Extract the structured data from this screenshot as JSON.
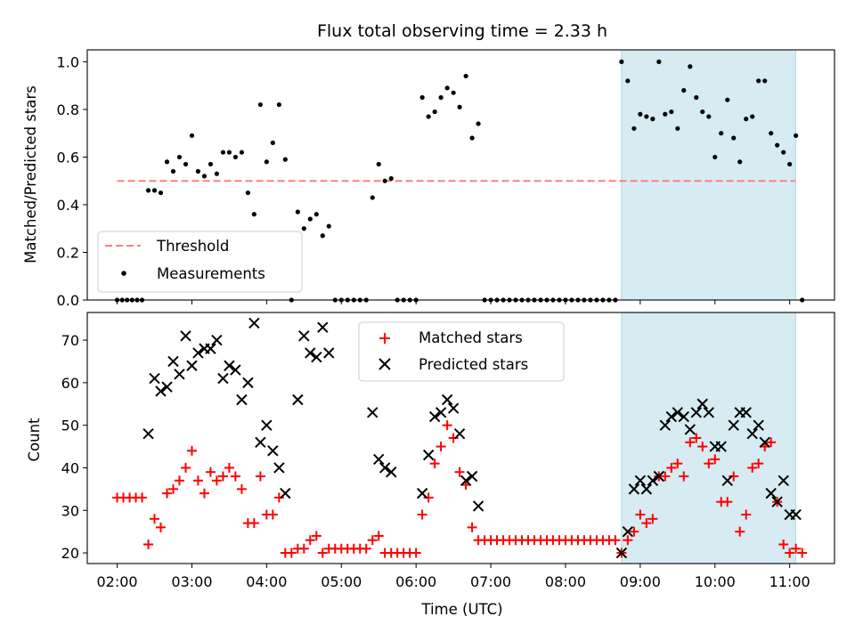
{
  "title": "Flux total observing time = 2.33 h",
  "colors": {
    "threshold": "#ff7f7f",
    "measurement": "#000000",
    "matched": "#ff0000",
    "predicted": "#000000",
    "highlight": "#add8e6"
  },
  "chart_data": [
    {
      "type": "scatter",
      "panel": "top",
      "ylabel": "Matched/Predicted stars",
      "xlabel": "",
      "ylim": [
        0,
        1.05
      ],
      "yticks": [
        0.0,
        0.2,
        0.4,
        0.6,
        0.8,
        1.0
      ],
      "ytick_labels": [
        "0.0",
        "0.2",
        "0.4",
        "0.6",
        "0.8",
        "1.0"
      ],
      "xlim_hours": [
        1.6,
        11.6
      ],
      "highlight_span_hours": [
        8.75,
        11.08
      ],
      "threshold": {
        "name": "Threshold",
        "value": 0.5,
        "x_range_hours": [
          2.0,
          11.08
        ]
      },
      "legend": [
        "Threshold",
        "Measurements"
      ],
      "legend_position": "lower left",
      "series": [
        {
          "name": "Measurements",
          "x_hours": [
            2.0,
            2.067,
            2.133,
            2.2,
            2.267,
            2.333,
            2.417,
            2.5,
            2.583,
            2.667,
            2.75,
            2.833,
            2.917,
            3.0,
            3.083,
            3.167,
            3.25,
            3.333,
            3.417,
            3.5,
            3.583,
            3.667,
            3.75,
            3.833,
            3.917,
            4.0,
            4.083,
            4.167,
            4.25,
            4.333,
            4.417,
            4.5,
            4.583,
            4.667,
            4.75,
            4.833,
            4.917,
            5.0,
            5.083,
            5.167,
            5.25,
            5.333,
            5.417,
            5.5,
            5.583,
            5.667,
            5.75,
            5.833,
            5.917,
            6.0,
            6.083,
            6.167,
            6.25,
            6.333,
            6.417,
            6.5,
            6.583,
            6.667,
            6.75,
            6.833,
            6.917,
            7.0,
            7.083,
            7.167,
            7.25,
            7.333,
            7.417,
            7.5,
            7.583,
            7.667,
            7.75,
            7.833,
            7.917,
            8.0,
            8.083,
            8.167,
            8.25,
            8.333,
            8.417,
            8.5,
            8.583,
            8.667,
            8.75,
            8.833,
            8.917,
            9.0,
            9.083,
            9.167,
            9.25,
            9.333,
            9.417,
            9.5,
            9.583,
            9.667,
            9.75,
            9.833,
            9.917,
            10.0,
            10.083,
            10.167,
            10.25,
            10.333,
            10.417,
            10.5,
            10.583,
            10.667,
            10.75,
            10.833,
            10.917,
            11.0,
            11.083,
            11.167
          ],
          "y": [
            0.0,
            0.0,
            0.0,
            0.0,
            0.0,
            0.0,
            0.46,
            0.46,
            0.45,
            0.58,
            0.54,
            0.6,
            0.57,
            0.69,
            0.54,
            0.52,
            0.57,
            0.53,
            0.62,
            0.62,
            0.6,
            0.62,
            0.45,
            0.36,
            0.82,
            0.58,
            0.66,
            0.82,
            0.59,
            0.0,
            0.37,
            0.3,
            0.34,
            0.36,
            0.27,
            0.31,
            0.0,
            0.0,
            0.0,
            0.0,
            0.0,
            0.0,
            0.43,
            0.57,
            0.5,
            0.51,
            0.0,
            0.0,
            0.0,
            0.0,
            0.85,
            0.77,
            0.79,
            0.85,
            0.89,
            0.87,
            0.81,
            0.94,
            0.68,
            0.74,
            0.0,
            0.0,
            0.0,
            0.0,
            0.0,
            0.0,
            0.0,
            0.0,
            0.0,
            0.0,
            0.0,
            0.0,
            0.0,
            0.0,
            0.0,
            0.0,
            0.0,
            0.0,
            0.0,
            0.0,
            0.0,
            0.0,
            1.0,
            0.92,
            0.72,
            0.78,
            0.77,
            0.76,
            1.0,
            0.78,
            0.79,
            0.72,
            0.88,
            0.98,
            0.85,
            0.79,
            0.77,
            0.6,
            0.7,
            0.84,
            0.68,
            0.58,
            0.76,
            0.77,
            0.92,
            0.92,
            0.7,
            0.65,
            0.62,
            0.57,
            0.69,
            0.0
          ]
        }
      ]
    },
    {
      "type": "scatter",
      "panel": "bottom",
      "ylabel": "Count",
      "xlabel": "Time (UTC)",
      "ylim": [
        17.5,
        76.5
      ],
      "yticks": [
        20,
        30,
        40,
        50,
        60,
        70
      ],
      "ytick_labels": [
        "20",
        "30",
        "40",
        "50",
        "60",
        "70"
      ],
      "xlim_hours": [
        1.6,
        11.6
      ],
      "xticks_hours": [
        2,
        3,
        4,
        5,
        6,
        7,
        8,
        9,
        10,
        11
      ],
      "xtick_labels": [
        "02:00",
        "03:00",
        "04:00",
        "05:00",
        "06:00",
        "07:00",
        "08:00",
        "09:00",
        "10:00",
        "11:00"
      ],
      "highlight_span_hours": [
        8.75,
        11.08
      ],
      "legend": [
        "Matched stars",
        "Predicted stars"
      ],
      "legend_position": "upper center",
      "series": [
        {
          "name": "Matched stars",
          "x_hours": [
            2.0,
            2.083,
            2.167,
            2.25,
            2.333,
            2.417,
            2.5,
            2.583,
            2.667,
            2.75,
            2.833,
            2.917,
            3.0,
            3.083,
            3.167,
            3.25,
            3.333,
            3.417,
            3.5,
            3.583,
            3.667,
            3.75,
            3.833,
            3.917,
            4.0,
            4.083,
            4.167,
            4.25,
            4.333,
            4.417,
            4.5,
            4.583,
            4.667,
            4.75,
            4.833,
            4.917,
            5.0,
            5.083,
            5.167,
            5.25,
            5.333,
            5.417,
            5.5,
            5.583,
            5.667,
            5.75,
            5.833,
            5.917,
            6.0,
            6.083,
            6.167,
            6.25,
            6.333,
            6.417,
            6.5,
            6.583,
            6.667,
            6.75,
            6.833,
            6.917,
            7.0,
            7.083,
            7.167,
            7.25,
            7.333,
            7.417,
            7.5,
            7.583,
            7.667,
            7.75,
            7.833,
            7.917,
            8.0,
            8.083,
            8.167,
            8.25,
            8.333,
            8.417,
            8.5,
            8.583,
            8.667,
            8.75,
            8.833,
            8.917,
            9.0,
            9.083,
            9.167,
            9.25,
            9.333,
            9.417,
            9.5,
            9.583,
            9.667,
            9.75,
            9.833,
            9.917,
            10.0,
            10.083,
            10.167,
            10.25,
            10.333,
            10.417,
            10.5,
            10.583,
            10.667,
            10.75,
            10.833,
            10.917,
            11.0,
            11.083,
            11.167
          ],
          "y": [
            33,
            33,
            33,
            33,
            33,
            22,
            28,
            26,
            34,
            35,
            37,
            40,
            44,
            37,
            34,
            39,
            37,
            38,
            40,
            38,
            35,
            27,
            27,
            38,
            29,
            29,
            33,
            20,
            20,
            21,
            21,
            23,
            24,
            20,
            21,
            21,
            21,
            21,
            21,
            21,
            21,
            23,
            24,
            20,
            20,
            20,
            20,
            20,
            20,
            29,
            33,
            41,
            45,
            50,
            47,
            39,
            36,
            26,
            23,
            23,
            23,
            23,
            23,
            23,
            23,
            23,
            23,
            23,
            23,
            23,
            23,
            23,
            23,
            23,
            23,
            23,
            23,
            23,
            23,
            23,
            23,
            20,
            23,
            25,
            29,
            27,
            28,
            38,
            38,
            40,
            41,
            38,
            46,
            47,
            45,
            41,
            42,
            32,
            32,
            38,
            25,
            29,
            40,
            41,
            45,
            46,
            32,
            22,
            20,
            21,
            20
          ],
          "marker": "+"
        },
        {
          "name": "Predicted stars",
          "x_hours": [
            2.417,
            2.5,
            2.583,
            2.667,
            2.75,
            2.833,
            2.917,
            3.0,
            3.083,
            3.167,
            3.25,
            3.333,
            3.417,
            3.5,
            3.583,
            3.667,
            3.75,
            3.833,
            3.917,
            4.0,
            4.083,
            4.167,
            4.25,
            4.417,
            4.5,
            4.583,
            4.667,
            4.75,
            4.833,
            5.417,
            5.5,
            5.583,
            5.667,
            6.083,
            6.167,
            6.25,
            6.333,
            6.417,
            6.5,
            6.583,
            6.667,
            6.75,
            6.833,
            8.75,
            8.833,
            8.917,
            9.0,
            9.083,
            9.167,
            9.25,
            9.333,
            9.417,
            9.5,
            9.583,
            9.667,
            9.75,
            9.833,
            9.917,
            10.0,
            10.083,
            10.167,
            10.25,
            10.333,
            10.417,
            10.5,
            10.583,
            10.667,
            10.75,
            10.833,
            10.917,
            11.0,
            11.083
          ],
          "y": [
            48,
            61,
            58,
            59,
            65,
            62,
            71,
            64,
            67,
            68,
            68,
            70,
            61,
            64,
            63,
            56,
            60,
            74,
            46,
            50,
            44,
            40,
            34,
            56,
            71,
            67,
            66,
            73,
            67,
            53,
            42,
            40,
            39,
            34,
            43,
            52,
            53,
            56,
            54,
            48,
            37,
            38,
            31,
            20,
            25,
            35,
            37,
            35,
            37,
            38,
            50,
            52,
            53,
            52,
            49,
            53,
            55,
            53,
            45,
            45,
            37,
            50,
            53,
            53,
            48,
            50,
            46,
            34,
            32,
            37,
            29,
            29
          ],
          "marker": "x"
        }
      ]
    }
  ]
}
